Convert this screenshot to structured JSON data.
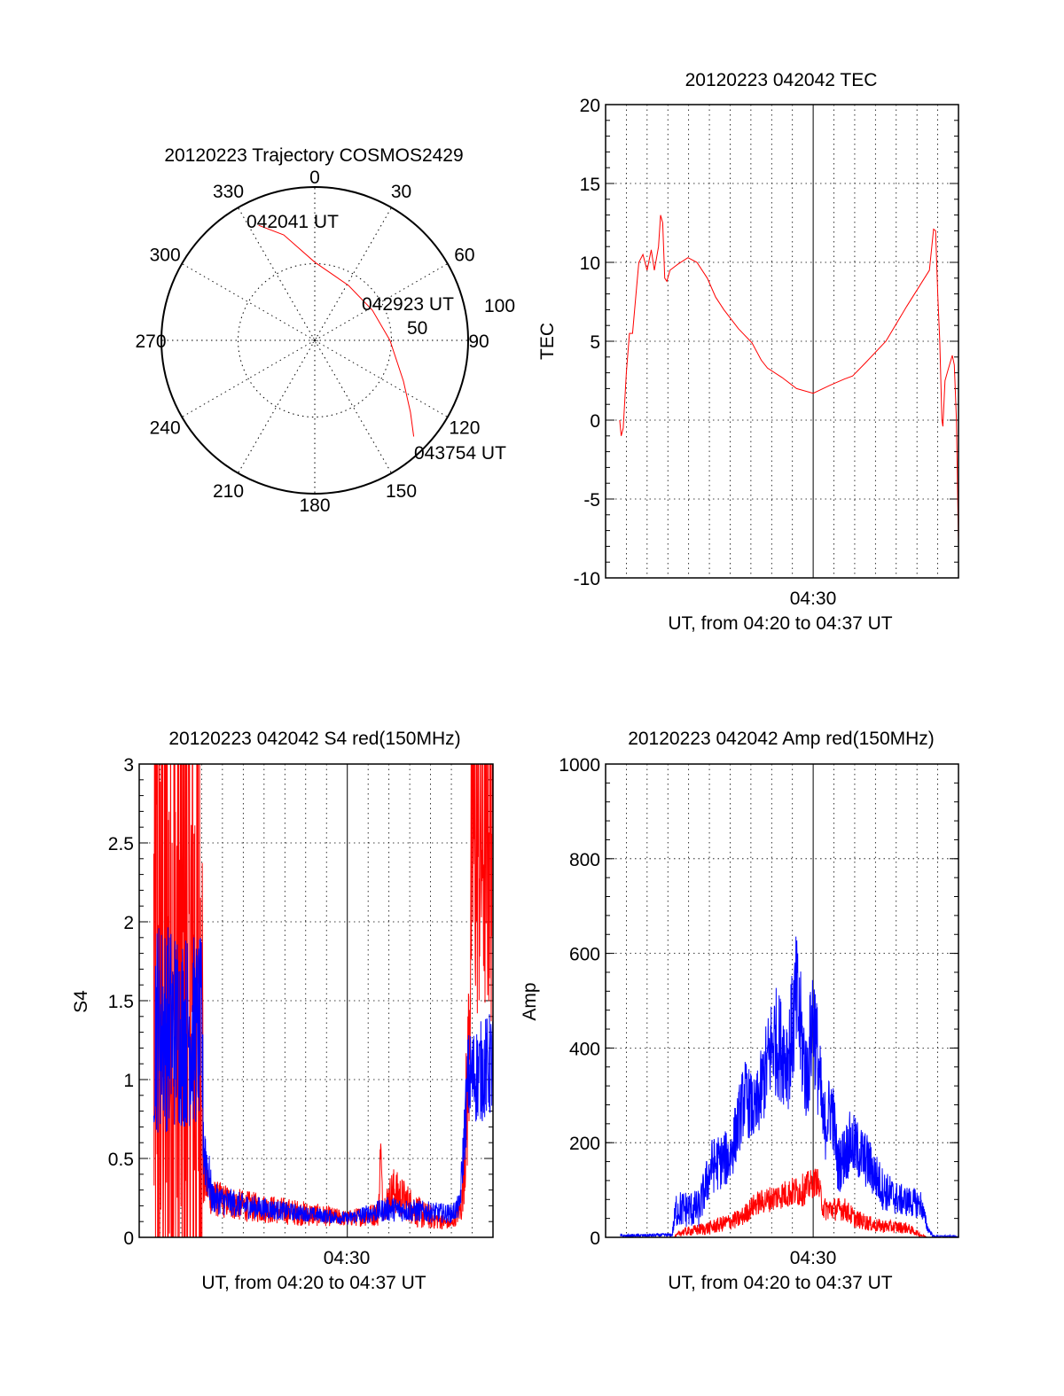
{
  "colors": {
    "red": "#ff0000",
    "blue": "#0000ff",
    "axis": "#000000"
  },
  "chart_data": [
    {
      "type": "polar",
      "title": "20120223 Trajectory COSMOS2429",
      "azimuth_labels": [
        "0",
        "30",
        "60",
        "90",
        "120",
        "150",
        "180",
        "210",
        "240",
        "270",
        "300",
        "330"
      ],
      "radius_labels": [
        "50",
        "100"
      ],
      "rlim": [
        0,
        100
      ],
      "trajectory": {
        "azimuth": [
          334,
          343.6,
          0,
          31.5,
          62.4,
          90,
          114.7,
          126.9,
          134.2
        ],
        "radius": [
          83.5,
          71.7,
          51,
          42,
          42.4,
          49,
          63.6,
          78,
          90
        ]
      },
      "annotations": [
        "042041 UT",
        "042923 UT",
        "043754 UT"
      ]
    },
    {
      "type": "line",
      "title": "20120223 042042 TEC",
      "xlabel": "UT, from 04:20 to 04:37 UT",
      "ylabel": "TEC",
      "xlim_minutes": [
        0,
        17
      ],
      "x_tick_label": "04:30",
      "ylim": [
        -10,
        20
      ],
      "y_ticks": [
        "20",
        "15",
        "10",
        "5",
        "0",
        "-5",
        "-10"
      ],
      "grid": true,
      "series": [
        {
          "name": "TEC",
          "color": "red",
          "points": [
            [
              0.68,
              0
            ],
            [
              0.75,
              -1
            ],
            [
              0.85,
              -0.5
            ],
            [
              1.0,
              3
            ],
            [
              1.15,
              5.5
            ],
            [
              1.3,
              5.5
            ],
            [
              1.5,
              8.5
            ],
            [
              1.6,
              10
            ],
            [
              1.8,
              10.5
            ],
            [
              2.0,
              9.5
            ],
            [
              2.2,
              10.8
            ],
            [
              2.35,
              9.5
            ],
            [
              2.55,
              11
            ],
            [
              2.65,
              13
            ],
            [
              2.75,
              12.5
            ],
            [
              2.85,
              9
            ],
            [
              2.95,
              8.8
            ],
            [
              3.1,
              9.5
            ],
            [
              3.5,
              9.9
            ],
            [
              3.97,
              10.3
            ],
            [
              4.4,
              10
            ],
            [
              4.9,
              9
            ],
            [
              5.3,
              7.8
            ],
            [
              5.7,
              7
            ],
            [
              6.4,
              5.8
            ],
            [
              7.05,
              4.9
            ],
            [
              7.5,
              3.8
            ],
            [
              7.8,
              3.3
            ],
            [
              8.5,
              2.7
            ],
            [
              9.2,
              2
            ],
            [
              10,
              1.7
            ],
            [
              10.8,
              2.2
            ],
            [
              11.5,
              2.6
            ],
            [
              11.9,
              2.8
            ],
            [
              12.5,
              3.6
            ],
            [
              13.5,
              5
            ],
            [
              14.5,
              7.2
            ],
            [
              15.6,
              9.5
            ],
            [
              15.8,
              12.1
            ],
            [
              15.9,
              12.0
            ],
            [
              16.0,
              8
            ],
            [
              16.1,
              5
            ],
            [
              16.2,
              0
            ],
            [
              16.25,
              -0.4
            ],
            [
              16.35,
              2.5
            ],
            [
              16.5,
              3.2
            ],
            [
              16.7,
              4.1
            ],
            [
              16.8,
              3.5
            ],
            [
              16.9,
              0
            ],
            [
              17.0,
              -8
            ],
            [
              17.0,
              -10
            ]
          ]
        }
      ]
    },
    {
      "type": "line",
      "title": "20120223 042042 S4 red(150MHz)",
      "xlabel": "UT, from 04:20 to 04:37 UT",
      "ylabel": "S4",
      "xlim_minutes": [
        0,
        17
      ],
      "x_tick_label": "04:30",
      "ylim": [
        0,
        3
      ],
      "y_ticks": [
        "3",
        "2.5",
        "2",
        "1.5",
        "1",
        "0.5",
        "0"
      ],
      "grid": true,
      "series": [
        {
          "name": "S4 red",
          "color": "red",
          "points_center_spread": [
            [
              0.7,
              1.5,
              3
            ],
            [
              3.0,
              1.5,
              3
            ],
            [
              3.1,
              0.4,
              0.2
            ],
            [
              3.5,
              0.25,
              0.12
            ],
            [
              5,
              0.2,
              0.1
            ],
            [
              8,
              0.15,
              0.08
            ],
            [
              10,
              0.12,
              0.05
            ],
            [
              11.5,
              0.15,
              0.08
            ],
            [
              11.6,
              0.6,
              0.1
            ],
            [
              11.7,
              0.18,
              0.08
            ],
            [
              12.2,
              0.3,
              0.15
            ],
            [
              13.5,
              0.15,
              0.1
            ],
            [
              15,
              0.08,
              0.03
            ],
            [
              15.5,
              0.2,
              0.1
            ],
            [
              15.8,
              1.0,
              0.6
            ],
            [
              16.0,
              2.5,
              1.2
            ],
            [
              17.0,
              2.5,
              1.2
            ]
          ]
        },
        {
          "name": "S4 blue",
          "color": "blue",
          "points_center_spread": [
            [
              0.7,
              1.35,
              0.7
            ],
            [
              3.0,
              1.3,
              0.6
            ],
            [
              3.1,
              0.6,
              0.3
            ],
            [
              3.5,
              0.25,
              0.1
            ],
            [
              5,
              0.2,
              0.08
            ],
            [
              8,
              0.15,
              0.05
            ],
            [
              10,
              0.12,
              0.04
            ],
            [
              12,
              0.18,
              0.08
            ],
            [
              15,
              0.15,
              0.06
            ],
            [
              15.4,
              0.2,
              0.08
            ],
            [
              15.6,
              0.6,
              0.2
            ],
            [
              15.8,
              1.0,
              0.3
            ],
            [
              17.0,
              1.1,
              0.35
            ]
          ]
        }
      ]
    },
    {
      "type": "line",
      "title": "20120223 042042 Amp red(150MHz)",
      "xlabel": "UT, from 04:20 to 04:37 UT",
      "ylabel": "Amp",
      "xlim_minutes": [
        0,
        17
      ],
      "x_tick_label": "04:30",
      "ylim": [
        0,
        1000
      ],
      "y_ticks": [
        "1000",
        "800",
        "600",
        "400",
        "200",
        "0"
      ],
      "grid": true,
      "series": [
        {
          "name": "Amp blue",
          "color": "blue",
          "points_center_spread": [
            [
              0.7,
              3,
              3
            ],
            [
              3.2,
              5,
              4
            ],
            [
              3.4,
              60,
              40
            ],
            [
              4.5,
              60,
              40
            ],
            [
              5.1,
              150,
              60
            ],
            [
              6,
              170,
              60
            ],
            [
              6.7,
              300,
              80
            ],
            [
              7.2,
              260,
              70
            ],
            [
              8.1,
              420,
              120
            ],
            [
              8.8,
              380,
              110
            ],
            [
              9.2,
              500,
              150
            ],
            [
              9.7,
              330,
              100
            ],
            [
              10,
              480,
              140
            ],
            [
              10.5,
              230,
              80
            ],
            [
              10.9,
              280,
              80
            ],
            [
              11.2,
              150,
              60
            ],
            [
              11.8,
              200,
              70
            ],
            [
              12.6,
              160,
              60
            ],
            [
              13.4,
              100,
              45
            ],
            [
              14.1,
              80,
              35
            ],
            [
              15.2,
              70,
              30
            ],
            [
              15.5,
              20,
              10
            ],
            [
              15.8,
              2,
              2
            ],
            [
              17,
              2,
              2
            ]
          ]
        },
        {
          "name": "Amp red",
          "color": "red",
          "points_center_spread": [
            [
              3.3,
              0,
              0
            ],
            [
              3.6,
              10,
              8
            ],
            [
              5,
              20,
              15
            ],
            [
              6.5,
              40,
              20
            ],
            [
              7.2,
              70,
              25
            ],
            [
              8.5,
              90,
              30
            ],
            [
              9.5,
              100,
              35
            ],
            [
              10.2,
              120,
              30
            ],
            [
              10.5,
              60,
              25
            ],
            [
              11.5,
              60,
              25
            ],
            [
              12.0,
              40,
              20
            ],
            [
              13,
              25,
              15
            ],
            [
              14.5,
              20,
              12
            ],
            [
              15.2,
              5,
              4
            ],
            [
              15.5,
              0,
              0
            ]
          ]
        }
      ]
    }
  ]
}
